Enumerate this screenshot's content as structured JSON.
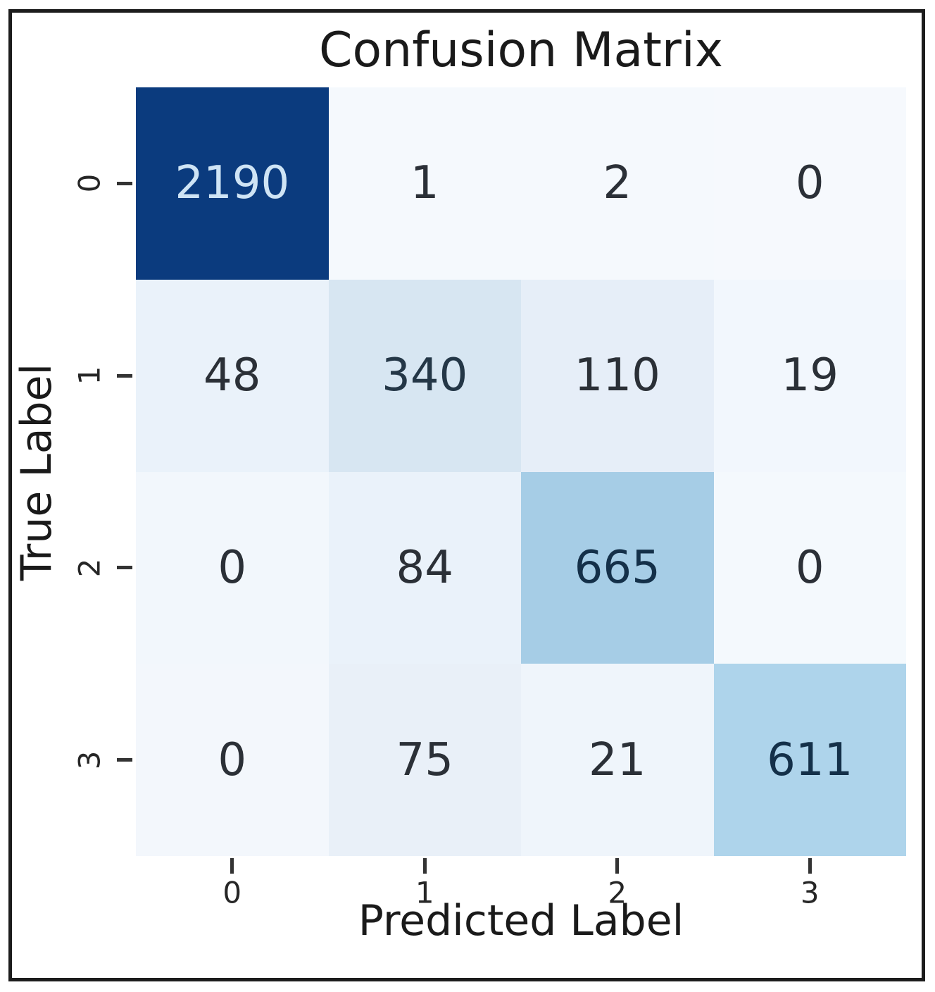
{
  "figure": {
    "title": "Confusion Matrix",
    "x_axis_label": "Predicted Label",
    "y_axis_label": "True Label"
  },
  "chart_data": {
    "type": "heatmap",
    "title": "Confusion Matrix",
    "xlabel": "Predicted Label",
    "ylabel": "True Label",
    "x_tick_labels": [
      "0",
      "1",
      "2",
      "3"
    ],
    "y_tick_labels": [
      "0",
      "1",
      "2",
      "3"
    ],
    "rows": [
      [
        2190,
        1,
        2,
        0
      ],
      [
        48,
        340,
        110,
        19
      ],
      [
        0,
        84,
        665,
        0
      ],
      [
        0,
        75,
        21,
        611
      ]
    ],
    "value_range": [
      0,
      2190
    ],
    "colormap": "Blues",
    "legend": "none",
    "grid": false,
    "cell_colors": [
      [
        "#0b3b7e",
        "#f5f9fd",
        "#f5f9fd",
        "#f6f9fd"
      ],
      [
        "#eaf2fa",
        "#d7e6f2",
        "#e6eef8",
        "#f2f7fd"
      ],
      [
        "#f2f7fc",
        "#eaf2fa",
        "#a6cde6",
        "#f4f9fd"
      ],
      [
        "#f3f7fc",
        "#e9f0f8",
        "#eff5fb",
        "#aed4eb"
      ]
    ],
    "cell_text_colors": [
      [
        "#cfe4f5",
        "#2b3037",
        "#2b3037",
        "#2b3037"
      ],
      [
        "#2b3037",
        "#243747",
        "#2b3037",
        "#2b3037"
      ],
      [
        "#2b3037",
        "#2b3037",
        "#143049",
        "#2b3037"
      ],
      [
        "#2b3037",
        "#2b3037",
        "#2b3037",
        "#143049"
      ]
    ],
    "colors": {
      "frame_border": "#1c1c1c",
      "axis_text": "#1a1a1a",
      "tick_text": "#262626",
      "tick_mark": "#333333",
      "cell_max": "#0b3b7e",
      "cell_min": "#f6f9fd",
      "background": "#ffffff"
    }
  }
}
